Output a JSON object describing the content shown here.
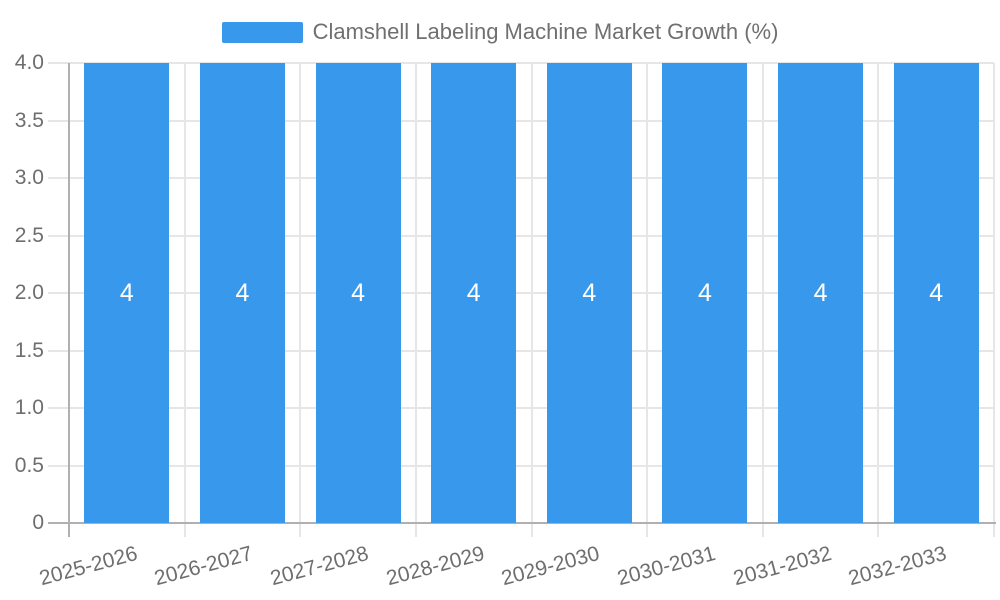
{
  "chart_data": {
    "type": "bar",
    "title": "Clamshell Labeling Machine Market Growth (%)",
    "legend_entries": [
      "Clamshell Labeling Machine Market Growth (%)"
    ],
    "legend_position": "top",
    "categories": [
      "2025-2026",
      "2026-2027",
      "2027-2028",
      "2028-2029",
      "2029-2030",
      "2030-2031",
      "2031-2032",
      "2032-2033"
    ],
    "values": [
      4,
      4,
      4,
      4,
      4,
      4,
      4,
      4
    ],
    "bar_value_labels": [
      "4",
      "4",
      "4",
      "4",
      "4",
      "4",
      "4",
      "4"
    ],
    "xlabel": "",
    "ylabel": "",
    "ylim": [
      0,
      4
    ],
    "yticks": [
      0,
      0.5,
      1,
      1.5,
      2,
      2.5,
      3,
      3.5,
      4
    ],
    "ytick_labels": [
      "0",
      "0.5",
      "1.0",
      "1.5",
      "2.0",
      "2.5",
      "3.0",
      "3.5",
      "4.0"
    ],
    "grid": true,
    "x_label_rotation_deg": -15
  },
  "colors": {
    "bar": "#3899EC",
    "axis_line": "#b0b0b0",
    "grid_line": "#e6e6e6",
    "tick_label": "#6e6e6e",
    "legend_text": "#707070",
    "bar_value_text": "#ffffff",
    "background": "#ffffff"
  }
}
